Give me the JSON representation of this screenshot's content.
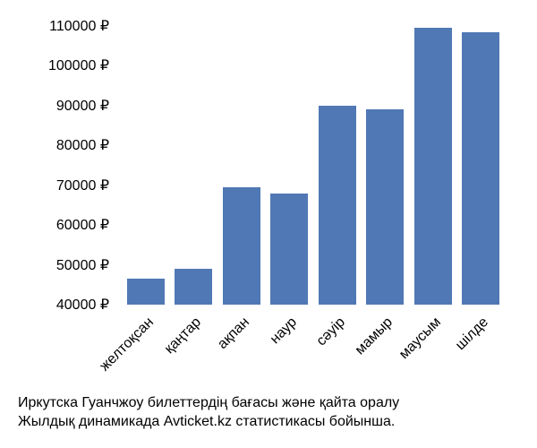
{
  "chart": {
    "type": "bar",
    "ymin": 40000,
    "ymax": 112000,
    "yticks": [
      40000,
      50000,
      60000,
      70000,
      80000,
      90000,
      100000,
      110000
    ],
    "ytick_labels": [
      "40000 ₽",
      "50000 ₽",
      "60000 ₽",
      "70000 ₽",
      "80000 ₽",
      "90000 ₽",
      "100000 ₽",
      "110000 ₽"
    ],
    "categories": [
      "желтоқсан",
      "қаңтар",
      "ақпан",
      "наур",
      "сәуір",
      "мамыр",
      "маусым",
      "шілде"
    ],
    "values": [
      46500,
      49000,
      69500,
      68000,
      90000,
      89000,
      109500,
      108500
    ],
    "bar_color": "#5078b4",
    "background_color": "#ffffff",
    "axis_font_size": 16,
    "text_color": "#000000",
    "bar_width_ratio": 0.78
  },
  "caption": {
    "line1": "Иркутска Гуанчжоу билеттердің бағасы және қайта оралу",
    "line2": "Жылдық динамикада Avticket.kz статистикасы бойынша."
  }
}
